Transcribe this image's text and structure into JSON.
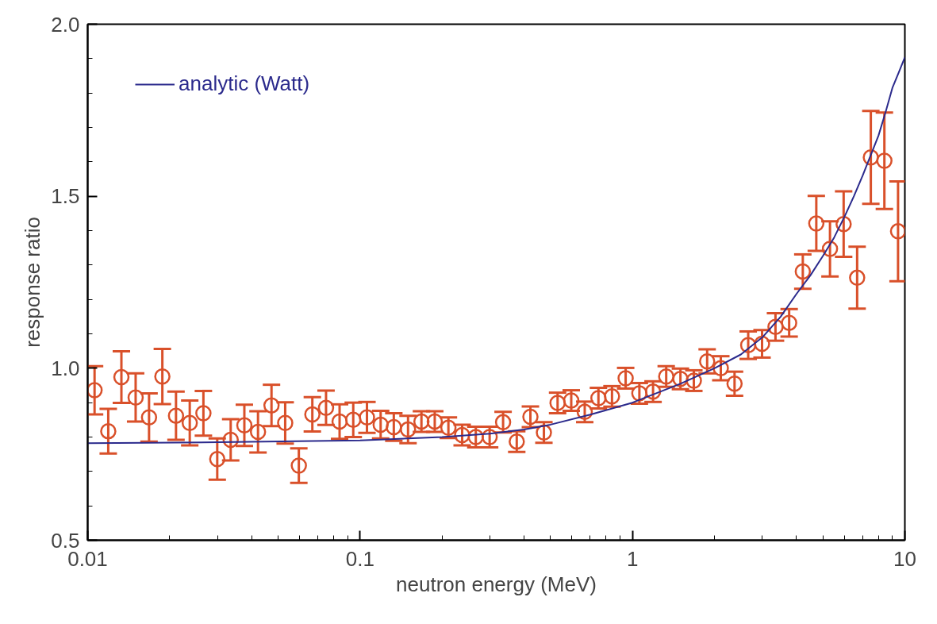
{
  "chart_data": {
    "type": "scatter",
    "xlabel": "neutron energy (MeV)",
    "ylabel": "response ratio",
    "log": "x",
    "xlim": [
      0.01,
      10
    ],
    "ylim": [
      0.5,
      2.0
    ],
    "xticks": [
      0.01,
      0.1,
      1,
      10
    ],
    "yticks": [
      {
        "value": 0.5,
        "label": "0.5"
      },
      {
        "value": 1,
        "label": "1.0"
      },
      {
        "value": 1.5,
        "label": "1.5"
      },
      {
        "value": 2,
        "label": "2.0"
      }
    ],
    "grid": false,
    "legend": "top left",
    "series": [
      {
        "color": "#d9502a",
        "marker": "circle",
        "x": [
          0.0106,
          0.0119,
          0.0133,
          0.015,
          0.0168,
          0.0188,
          0.0211,
          0.0237,
          0.0266,
          0.0299,
          0.0335,
          0.0376,
          0.0422,
          0.0473,
          0.0531,
          0.0596,
          0.0668,
          0.075,
          0.0841,
          0.0944,
          0.106,
          0.119,
          0.133,
          0.15,
          0.168,
          0.188,
          0.211,
          0.237,
          0.266,
          0.299,
          0.335,
          0.376,
          0.422,
          0.473,
          0.531,
          0.596,
          0.668,
          0.75,
          0.841,
          0.944,
          1.06,
          1.19,
          1.33,
          1.5,
          1.68,
          1.88,
          2.11,
          2.37,
          2.66,
          2.99,
          3.35,
          3.76,
          4.22,
          4.73,
          5.31,
          5.96,
          6.68,
          7.5,
          8.41,
          9.44
        ],
        "values": [
          0.936,
          0.817,
          0.974,
          0.915,
          0.857,
          0.976,
          0.862,
          0.841,
          0.869,
          0.736,
          0.792,
          0.834,
          0.815,
          0.892,
          0.841,
          0.717,
          0.866,
          0.885,
          0.845,
          0.85,
          0.857,
          0.836,
          0.829,
          0.822,
          0.845,
          0.845,
          0.827,
          0.806,
          0.8,
          0.8,
          0.843,
          0.787,
          0.859,
          0.813,
          0.899,
          0.906,
          0.873,
          0.913,
          0.918,
          0.971,
          0.927,
          0.932,
          0.976,
          0.969,
          0.964,
          1.02,
          1.0,
          0.955,
          1.067,
          1.071,
          1.12,
          1.132,
          1.281,
          1.421,
          1.347,
          1.419,
          1.263,
          1.613,
          1.603,
          1.398
        ],
        "errors": [
          0.07,
          0.065,
          0.075,
          0.07,
          0.07,
          0.08,
          0.07,
          0.065,
          0.065,
          0.06,
          0.06,
          0.06,
          0.06,
          0.06,
          0.06,
          0.05,
          0.05,
          0.05,
          0.05,
          0.05,
          0.045,
          0.04,
          0.04,
          0.04,
          0.03,
          0.03,
          0.03,
          0.03,
          0.03,
          0.03,
          0.03,
          0.03,
          0.03,
          0.03,
          0.03,
          0.03,
          0.03,
          0.03,
          0.03,
          0.03,
          0.03,
          0.03,
          0.03,
          0.03,
          0.03,
          0.035,
          0.035,
          0.035,
          0.04,
          0.04,
          0.04,
          0.04,
          0.05,
          0.08,
          0.08,
          0.095,
          0.09,
          0.135,
          0.14,
          0.145
        ]
      },
      {
        "type": "line",
        "name": "analytic (Watt)",
        "color": "#2b2a8c",
        "x": [
          0.01,
          0.03,
          0.1,
          0.2,
          0.3,
          0.4,
          0.5,
          0.7,
          1,
          1.5,
          2,
          2.5,
          3,
          3.5,
          4,
          4.5,
          5,
          5.5,
          6,
          6.5,
          7,
          7.5,
          8,
          8.5,
          9,
          9.5,
          10
        ],
        "values": [
          0.782,
          0.785,
          0.79,
          0.8,
          0.81,
          0.822,
          0.836,
          0.865,
          0.9,
          0.955,
          1.0,
          1.04,
          1.09,
          1.15,
          1.216,
          1.27,
          1.326,
          1.38,
          1.44,
          1.5,
          1.56,
          1.62,
          1.676,
          1.745,
          1.815,
          1.86,
          1.904
        ]
      }
    ]
  }
}
